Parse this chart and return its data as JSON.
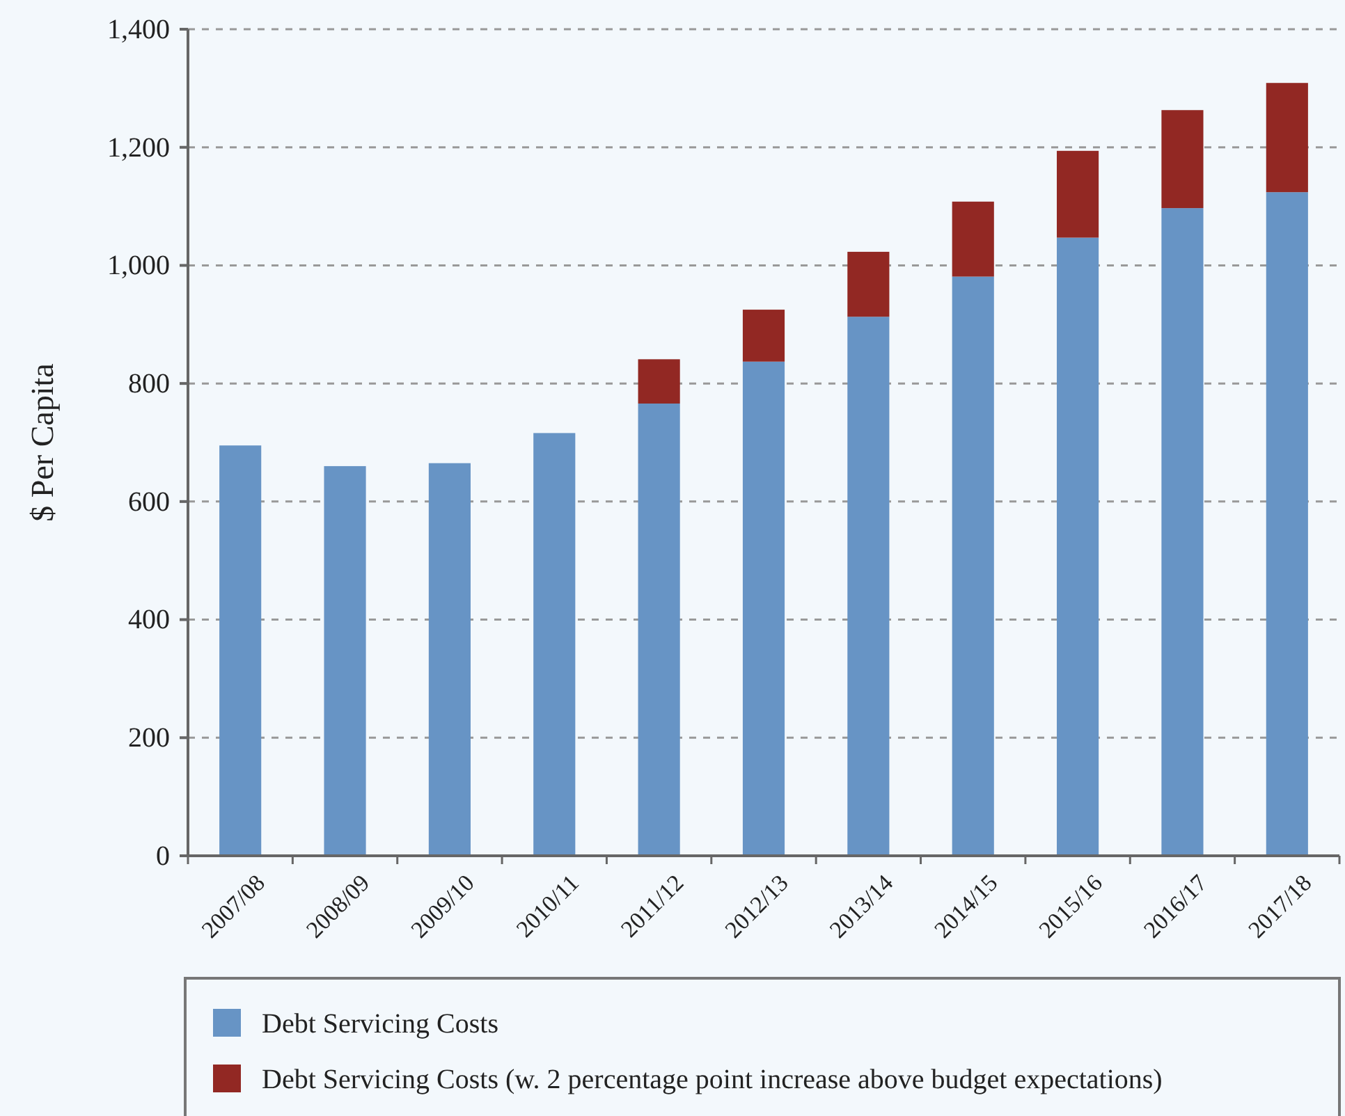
{
  "chart_data": {
    "type": "bar",
    "ylabel": "$ Per Capita",
    "categories": [
      "2007/08",
      "2008/09",
      "2009/10",
      "2010/11",
      "2011/12",
      "2012/13",
      "2013/14",
      "2014/15",
      "2015/16",
      "2016/17",
      "2017/18"
    ],
    "series": [
      {
        "name": "Debt Servicing Costs",
        "color": "#6794c5",
        "values": [
          695,
          660,
          665,
          716,
          766,
          837,
          913,
          981,
          1047,
          1097,
          1124
        ]
      },
      {
        "name": "Debt Servicing Costs (w. 2 percentage point increase above budget expectations)",
        "color": "#922823",
        "values": [
          null,
          null,
          null,
          null,
          75,
          88,
          110,
          127,
          147,
          166,
          185
        ]
      }
    ],
    "stacked": true,
    "ylim": [
      0,
      1400
    ],
    "yticks": [
      0,
      {
        "value": 200,
        "label": "200"
      },
      {
        "value": 400,
        "label": "400"
      },
      {
        "value": 600,
        "label": "600"
      },
      {
        "value": 800,
        "label": "800"
      },
      {
        "value": 1000,
        "label": "1,000"
      },
      {
        "value": 1200,
        "label": "1,200"
      },
      {
        "value": 1400,
        "label": "1,400"
      }
    ],
    "grid": "y",
    "legend": "bottom"
  }
}
